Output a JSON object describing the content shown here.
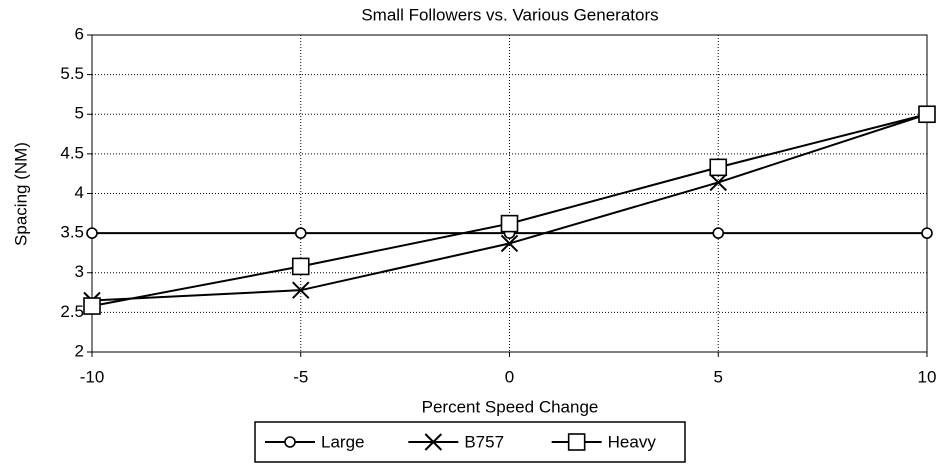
{
  "chart_data": {
    "type": "line",
    "title": "Small Followers vs. Various Generators",
    "x_label": "Percent Speed Change",
    "y_label": "Spacing (NM)",
    "x": [
      -10,
      -5,
      0,
      5,
      10
    ],
    "series": [
      {
        "name": "Large",
        "color": "#000000",
        "marker": "circle",
        "values": [
          3.5,
          3.5,
          3.5,
          3.5,
          3.5
        ]
      },
      {
        "name": "B757",
        "color": "#000000",
        "marker": "x",
        "values": [
          2.65,
          2.78,
          3.37,
          4.14,
          5.0
        ]
      },
      {
        "name": "Heavy",
        "color": "#000000",
        "marker": "square",
        "values": [
          2.58,
          3.08,
          3.62,
          4.33,
          5.0
        ]
      }
    ],
    "xlim": [
      -10,
      10
    ],
    "xticks": [
      -10,
      -5,
      0,
      5,
      10
    ],
    "ylim": [
      2,
      6
    ],
    "yticks": [
      2,
      2.5,
      3,
      3.5,
      4,
      4.5,
      5,
      5.5,
      6
    ],
    "grid": true,
    "legend": "bottom"
  }
}
